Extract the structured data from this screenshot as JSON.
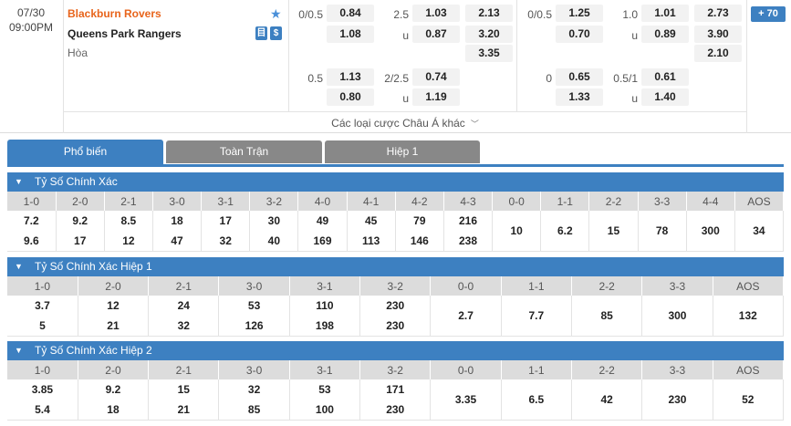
{
  "match": {
    "date": "07/30",
    "time": "09:00PM",
    "home_team": "Blackburn Rovers",
    "away_team": "Queens Park Rangers",
    "draw_label": "Hòa",
    "more_count_label": "70",
    "more_bets_label": "Các loại cược Châu Á khác",
    "badge1": "目",
    "badge2": "$",
    "left_group": {
      "row1": {
        "hdp": "0/0.5",
        "hdp_home": "0.84",
        "ou": "2.5",
        "ou_over": "1.03",
        "x12_home": "2.13"
      },
      "row2": {
        "hdp_away": "1.08",
        "ou_u": "u",
        "ou_under": "0.87",
        "x12_away": "3.20"
      },
      "row3": {
        "x12_draw": "3.35"
      },
      "row4": {
        "hdp": "0.5",
        "hdp_home": "1.13",
        "ou": "2/2.5",
        "ou_over": "0.74"
      },
      "row5": {
        "hdp_away": "0.80",
        "ou_u": "u",
        "ou_under": "1.19"
      }
    },
    "right_group": {
      "row1": {
        "hdp": "0/0.5",
        "hdp_home": "1.25",
        "ou": "1.0",
        "ou_over": "1.01",
        "x12_home": "2.73"
      },
      "row2": {
        "hdp_away": "0.70",
        "ou_u": "u",
        "ou_under": "0.89",
        "x12_away": "3.90"
      },
      "row3": {
        "x12_draw": "2.10"
      },
      "row4": {
        "hdp": "0",
        "hdp_home": "0.65",
        "ou": "0.5/1",
        "ou_over": "0.61"
      },
      "row5": {
        "hdp_away": "1.33",
        "ou_u": "u",
        "ou_under": "1.40"
      }
    }
  },
  "tabs": [
    "Phổ biến",
    "Toàn Trận",
    "Hiệp 1"
  ],
  "sections": [
    {
      "title": "Tỷ Số Chính Xác",
      "headers": [
        "1-0",
        "2-0",
        "2-1",
        "3-0",
        "3-1",
        "3-2",
        "4-0",
        "4-1",
        "4-2",
        "4-3",
        "0-0",
        "1-1",
        "2-2",
        "3-3",
        "4-4",
        "AOS"
      ],
      "home": [
        "7.2",
        "9.2",
        "8.5",
        "18",
        "17",
        "30",
        "49",
        "45",
        "79",
        "216"
      ],
      "away": [
        "9.6",
        "17",
        "12",
        "47",
        "32",
        "40",
        "169",
        "113",
        "146",
        "238"
      ],
      "single": [
        "10",
        "6.2",
        "15",
        "78",
        "300",
        "34"
      ]
    },
    {
      "title": "Tỷ Số Chính Xác Hiệp 1",
      "headers": [
        "1-0",
        "2-0",
        "2-1",
        "3-0",
        "3-1",
        "3-2",
        "0-0",
        "1-1",
        "2-2",
        "3-3",
        "AOS"
      ],
      "home": [
        "3.7",
        "12",
        "24",
        "53",
        "110",
        "230"
      ],
      "away": [
        "5",
        "21",
        "32",
        "126",
        "198",
        "230"
      ],
      "single": [
        "2.7",
        "7.7",
        "85",
        "300",
        "132"
      ]
    },
    {
      "title": "Tỷ Số Chính Xác Hiệp 2",
      "headers": [
        "1-0",
        "2-0",
        "2-1",
        "3-0",
        "3-1",
        "3-2",
        "0-0",
        "1-1",
        "2-2",
        "3-3",
        "AOS"
      ],
      "home": [
        "3.85",
        "9.2",
        "15",
        "32",
        "53",
        "171"
      ],
      "away": [
        "5.4",
        "18",
        "21",
        "85",
        "100",
        "230"
      ],
      "single": [
        "3.35",
        "6.5",
        "42",
        "230",
        "52"
      ]
    }
  ]
}
